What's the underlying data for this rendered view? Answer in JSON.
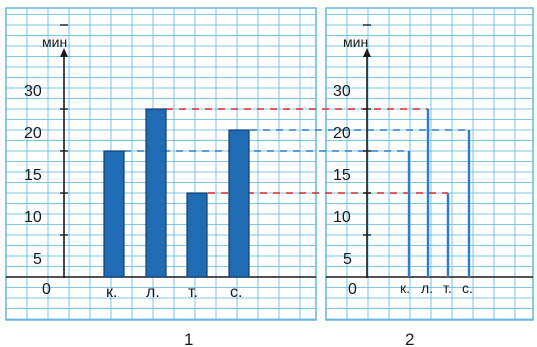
{
  "colors": {
    "grid": "#57b4de",
    "panel_border": "#57b4de",
    "bar": "#1f6cb5",
    "bar_edge": "#0f3f73",
    "axis": "#1a1a1a",
    "dash_red": "#d8262f",
    "dash_blue": "#2f7ac9",
    "text": "#1a1a1a"
  },
  "chart_data": [
    {
      "type": "bar",
      "panel_label": "1",
      "ylabel": "мин",
      "ylim": [
        0,
        35
      ],
      "yticks": [
        "30",
        "20",
        "15",
        "10",
        "5",
        "0"
      ],
      "categories": [
        "к.",
        "л.",
        "т.",
        "с."
      ],
      "values": [
        15,
        20,
        10,
        17.5
      ]
    },
    {
      "type": "bar",
      "style": "thin-lines",
      "panel_label": "2",
      "ylabel": "мин",
      "ylim": [
        0,
        35
      ],
      "yticks": [
        "30",
        "20",
        "15",
        "10",
        "5",
        "0"
      ],
      "categories": [
        "к.",
        "л.",
        "т.",
        "с."
      ],
      "values": [
        15,
        20,
        10,
        17.5
      ]
    }
  ]
}
